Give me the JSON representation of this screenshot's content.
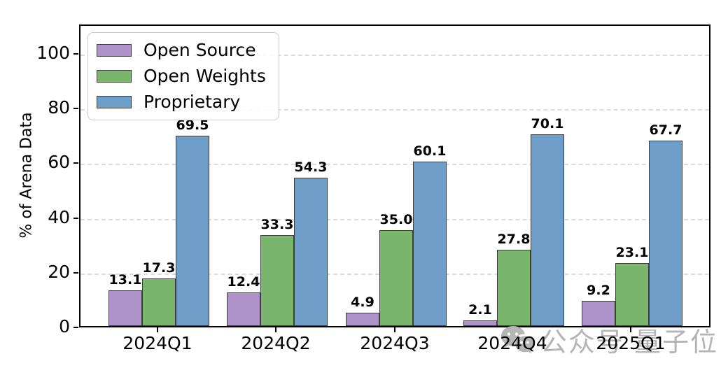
{
  "chart_data": {
    "type": "bar",
    "title": "",
    "categories": [
      "2024Q1",
      "2024Q2",
      "2024Q3",
      "2024Q4",
      "2025Q1"
    ],
    "series": [
      {
        "name": "Open Source",
        "color": "#ae93ca",
        "values": [
          13.1,
          12.4,
          4.9,
          2.1,
          9.2
        ]
      },
      {
        "name": "Open Weights",
        "color": "#7ab56e",
        "values": [
          17.3,
          33.3,
          35.0,
          27.8,
          23.1
        ]
      },
      {
        "name": "Proprietary",
        "color": "#6f9ec9",
        "values": [
          69.5,
          54.3,
          60.1,
          70.1,
          67.7
        ]
      }
    ],
    "xlabel": "",
    "ylabel": "% of Arena Data",
    "ylim": [
      0,
      110
    ],
    "yticks": [
      0,
      20,
      40,
      60,
      80,
      100
    ],
    "grid": "horizontal-dashed",
    "legend_position": "upper-left",
    "value_label_format": "one-decimal"
  },
  "watermark": {
    "icon": "wechat-icon",
    "text": "公众号 量子位"
  },
  "colors": {
    "background": "#ffffff",
    "axis": "#000000",
    "grid": "#dcdcdc",
    "bar_edge": "#3c3c3c",
    "value_label": "#000000",
    "legend_border": "#cccccc",
    "watermark": "#b5b5b5"
  }
}
